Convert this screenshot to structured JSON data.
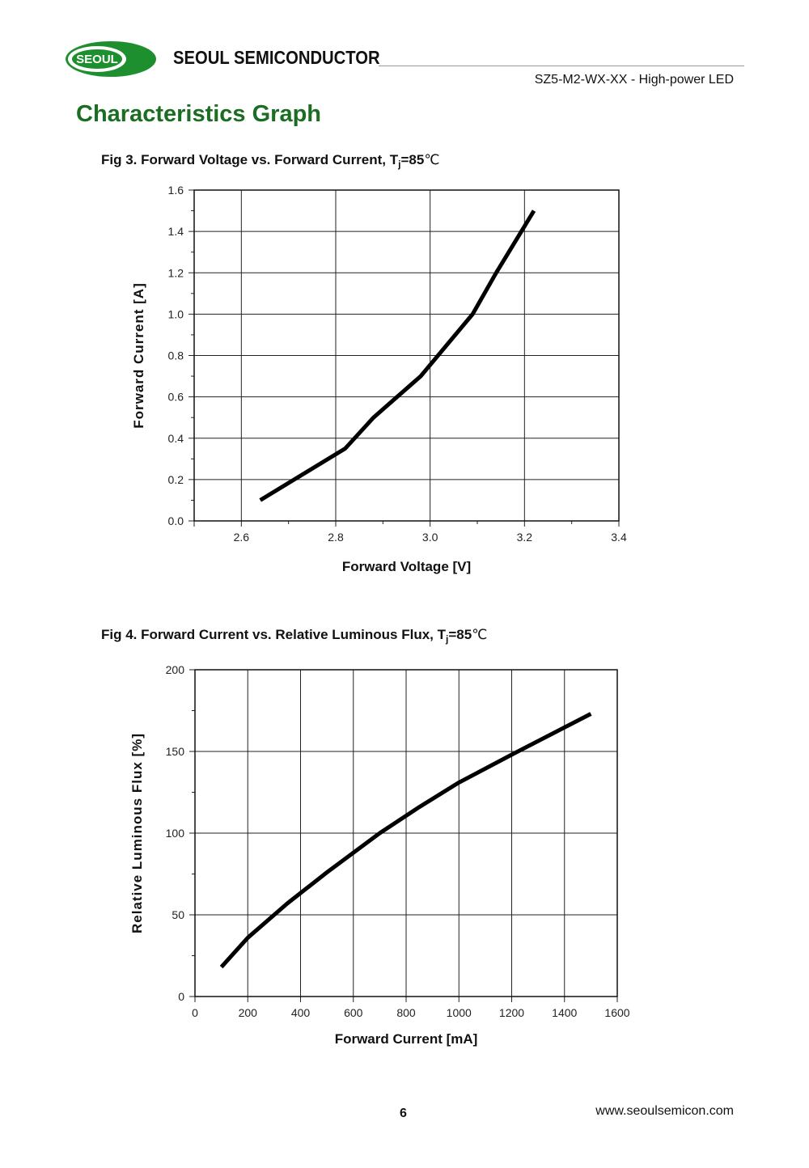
{
  "header": {
    "logo_text": "SEOUL",
    "company": "SEOUL SEMICONDUCTOR",
    "doc_title": "SZ5-M2-WX-XX - High-power LED",
    "brand_green": "#1e8f2e"
  },
  "section_title": "Characteristics Graph",
  "figures": [
    {
      "caption_main": "Fig 3. Forward Voltage vs. Forward Current, T",
      "caption_sub": "j",
      "caption_tail": "=85",
      "caption_unit": "℃"
    },
    {
      "caption_main": "Fig 4. Forward Current vs. Relative Luminous Flux, T",
      "caption_sub": "j",
      "caption_tail": "=85",
      "caption_unit": "℃"
    }
  ],
  "chart_data": [
    {
      "type": "line",
      "title": "Fig 3. Forward Voltage vs. Forward Current, Tj=85℃",
      "xlabel": "Forward Voltage [V]",
      "ylabel": "Forward Current [A]",
      "xlim": [
        2.5,
        3.4
      ],
      "ylim": [
        0.0,
        1.6
      ],
      "xticks": [
        2.6,
        2.8,
        3.0,
        3.2,
        3.4
      ],
      "xtick_labels": [
        "2.6",
        "2.8",
        "3.0",
        "3.2",
        "3.4"
      ],
      "yticks": [
        0.0,
        0.2,
        0.4,
        0.6,
        0.8,
        1.0,
        1.2,
        1.4,
        1.6
      ],
      "ytick_labels": [
        "0.0",
        "0.2",
        "0.4",
        "0.6",
        "0.8",
        "1.0",
        "1.2",
        "1.4",
        "1.6"
      ],
      "grid": true,
      "series": [
        {
          "x": [
            2.64,
            2.82,
            2.88,
            2.98,
            3.09,
            3.14,
            3.22
          ],
          "y": [
            0.1,
            0.35,
            0.5,
            0.7,
            1.0,
            1.2,
            1.5
          ]
        }
      ]
    },
    {
      "type": "line",
      "title": "Fig 4. Forward Current vs. Relative Luminous Flux, Tj=85℃",
      "xlabel": "Forward Current [mA]",
      "ylabel": "Relative Luminous Flux [%]",
      "xlim": [
        0,
        1600
      ],
      "ylim": [
        0,
        200
      ],
      "xticks": [
        0,
        200,
        400,
        600,
        800,
        1000,
        1200,
        1400,
        1600
      ],
      "xtick_labels": [
        "0",
        "200",
        "400",
        "600",
        "800",
        "1000",
        "1200",
        "1400",
        "1600"
      ],
      "yticks": [
        0,
        50,
        100,
        150,
        200
      ],
      "ytick_labels": [
        "0",
        "50",
        "100",
        "150",
        "200"
      ],
      "grid": true,
      "series": [
        {
          "x": [
            100,
            200,
            350,
            500,
            700,
            850,
            1000,
            1200,
            1500
          ],
          "y": [
            18,
            36,
            57,
            76,
            100,
            116,
            131,
            148,
            173
          ]
        }
      ]
    }
  ],
  "footer": {
    "page_number": "6",
    "website": "www.seoulsemicon.com"
  }
}
